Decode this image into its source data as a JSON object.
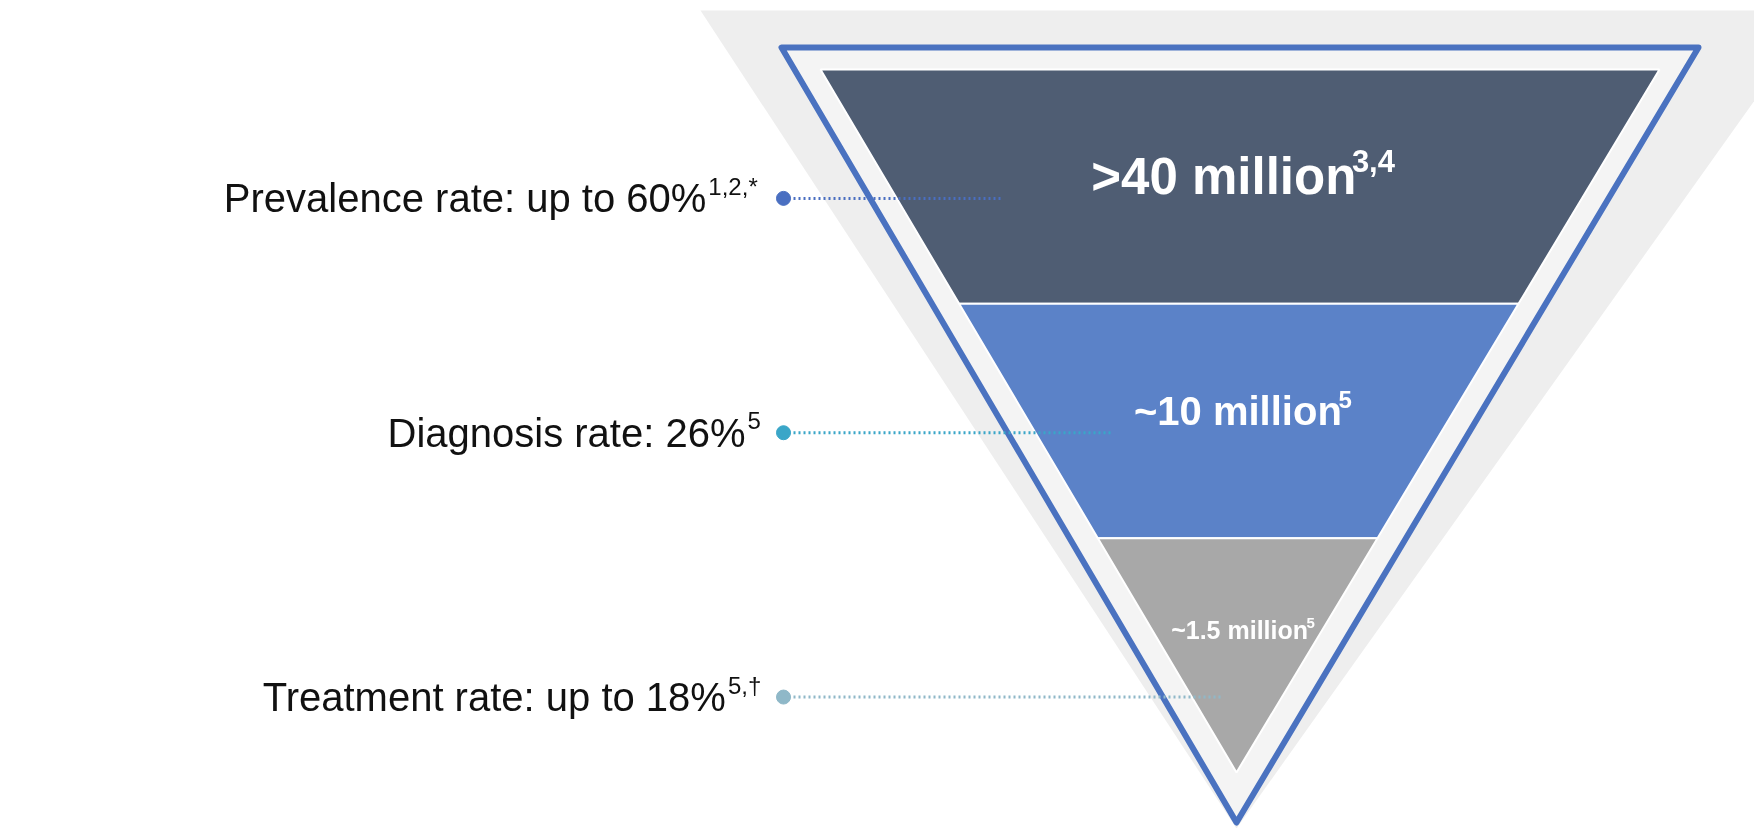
{
  "chart_data": {
    "type": "other",
    "categories": [
      "Prevalence rate: up to 60%$^{1,2,*}$",
      "Diagnosis rate: 26%$^{5}$",
      "Treatment rate: up to 18%$^{5,†}$"
    ],
    "values": [
      40000000,
      10000000,
      1500000
    ],
    "value_labels": [
      ">40 million$^{3,4}$",
      "~10 million$^{5}$",
      "~1.5 million$^{5}$"
    ],
    "colors": [
      "#4f5d73",
      "#5b82c8",
      "#a8a8a8"
    ]
  }
}
